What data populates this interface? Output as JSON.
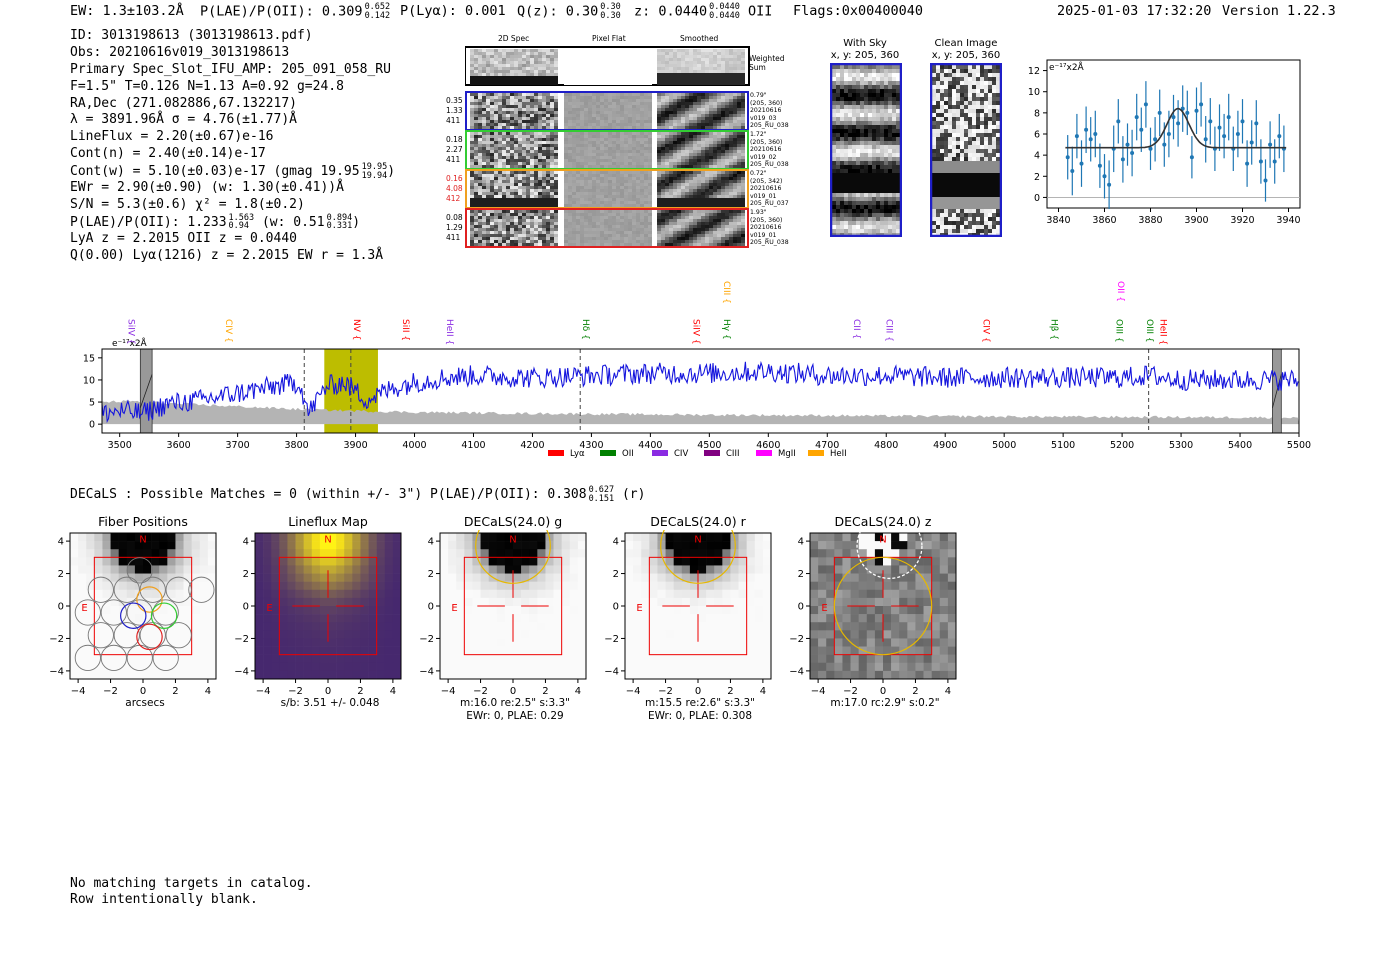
{
  "header": {
    "ew": "EW: 1.3±103.2Å",
    "plae_label": "P(LAE)/P(OII): 0.309",
    "plae_hi": "0.652",
    "plae_lo": "0.142",
    "plya": "P(Lyα): 0.001",
    "qz_label": "Q(z): 0.30",
    "qz_hi": "0.30",
    "qz_lo": "0.30",
    "z_label": "z: 0.0440",
    "z_hi": "0.0440",
    "z_lo": "0.0440",
    "z_line": "OII",
    "flags": "Flags:0x00400040",
    "timestamp": "2025-01-03 17:32:20",
    "version": "Version 1.22.3"
  },
  "info": {
    "id": "ID: 3013198613 (3013198613.pdf)",
    "obs": "Obs: 20210616v019_3013198613",
    "primary": "Primary Spec_Slot_IFU_AMP: 205_091_058_RU",
    "fiber": "F=1.5\"  T=0.126  N=1.13  A=0.92  g=24.8",
    "radec": "RA,Dec (271.082886,67.132217)",
    "lambda": "λ = 3891.96Å  σ = 4.76(±1.77)Å",
    "lineflux": "LineFlux = 2.20(±0.67)e-16",
    "contn": "Cont(n) = 2.40(±0.14)e-17",
    "contw": "Cont(w) = 5.10(±0.03)e-17 (gmag 19.95",
    "gmag_hi": "19.95",
    "gmag_lo": "19.94",
    "contw_close": ")",
    "ewr": "EWr = 2.90(±0.90) (w: 1.30(±0.41))Å",
    "sn": "S/N = 5.3(±0.6)  χ² = 1.8(±0.2)",
    "plae": "P(LAE)/P(OII): 1.233",
    "plae_hi": "1.563",
    "plae_lo": "0.94",
    "plae_w": "(w: 0.51",
    "plae_w_hi": "0.894",
    "plae_w_lo": "0.331",
    "plae_close": ")",
    "lya": "LyA z = 2.2015  OII z = 0.0440",
    "q": "Q(0.00) Lyα(1216) z = 2.2015  EW r = 1.3Å"
  },
  "cutouts": {
    "col_2d": "2D Spec",
    "col_flat": "Pixel Flat",
    "col_smooth": "Smoothed",
    "weighted": "Weighted Sum",
    "rows": [
      {
        "left": [
          "0.35",
          "1.33",
          "411"
        ],
        "left_color": "#000000",
        "border": "#1f1fc8",
        "right": [
          "0.79\"",
          "(205, 360)",
          "20210616",
          "v019_03",
          "205_RU_038"
        ]
      },
      {
        "left": [
          "0.18",
          "2.27",
          "411"
        ],
        "left_color": "#000000",
        "border": "#33cc33",
        "right": [
          "1.72\"",
          "(205, 360)",
          "20210616",
          "v019_02",
          "205_RU_038"
        ]
      },
      {
        "left": [
          "0.16",
          "4.08",
          "412"
        ],
        "left_color": "#e02020",
        "border": "#f0a020",
        "right": [
          "0.72\"",
          "(205, 342)",
          "20210616",
          "v019_01",
          "205_RU_037"
        ]
      },
      {
        "left": [
          "0.08",
          "1.29",
          "411"
        ],
        "left_color": "#000000",
        "border": "#e02020",
        "right": [
          "1.93\"",
          "(205, 360)",
          "20210616",
          "v019_01",
          "205_RU_038"
        ]
      }
    ]
  },
  "sky": {
    "with_sky_title": "With Sky",
    "with_sky_coords": "x, y: 205, 360",
    "clean_title": "Clean Image",
    "clean_coords": "x, y: 205, 360"
  },
  "zoom_chart": {
    "unit_label": "e⁻¹⁷x2Å"
  },
  "spectrum_chart": {
    "unit_label": "e⁻¹⁷x2Å",
    "legend": [
      {
        "label": "Lyα",
        "color": "#ff0000"
      },
      {
        "label": "OII",
        "color": "#008000"
      },
      {
        "label": "CIV",
        "color": "#8a2be2"
      },
      {
        "label": "CIII",
        "color": "#800080"
      },
      {
        "label": "MgII",
        "color": "#ff00ff"
      },
      {
        "label": "HeII",
        "color": "#ffa500"
      }
    ],
    "lines": [
      {
        "name": "SiIV",
        "x": 3510,
        "color": "#8a2be2",
        "row": 0
      },
      {
        "name": "CIV",
        "x": 3675,
        "color": "#ffa500",
        "row": 0
      },
      {
        "name": "NV",
        "x": 3892,
        "color": "#ff0000",
        "row": 0
      },
      {
        "name": "SiII",
        "x": 3975,
        "color": "#ff0000",
        "row": 0
      },
      {
        "name": "HeII",
        "x": 4050,
        "color": "#8a2be2",
        "row": 0
      },
      {
        "name": "Hδ",
        "x": 4281,
        "color": "#008000",
        "row": 0
      },
      {
        "name": "SiIV",
        "x": 4468,
        "color": "#ff0000",
        "row": 0
      },
      {
        "name": "Hγ",
        "x": 4520,
        "color": "#008000",
        "row": 0
      },
      {
        "name": "CIII",
        "x": 4520,
        "color": "#ffa500",
        "row": 1
      },
      {
        "name": "CII",
        "x": 4740,
        "color": "#8a2be2",
        "row": 0
      },
      {
        "name": "CIII",
        "x": 4795,
        "color": "#8a2be2",
        "row": 0
      },
      {
        "name": "CIV",
        "x": 4960,
        "color": "#ff0000",
        "row": 0
      },
      {
        "name": "Hβ",
        "x": 5075,
        "color": "#008000",
        "row": 0
      },
      {
        "name": "OIII",
        "x": 5185,
        "color": "#008000",
        "row": 0
      },
      {
        "name": "OII",
        "x": 5188,
        "color": "#ff00ff",
        "row": 1
      },
      {
        "name": "OIII",
        "x": 5237,
        "color": "#008000",
        "row": 0
      },
      {
        "name": "HeII",
        "x": 5260,
        "color": "#ff0000",
        "row": 0
      }
    ]
  },
  "decals": {
    "summary": "DECaLS : Possible Matches = 0 (within +/- 3\")  P(LAE)/P(OII): 0.308",
    "summary_hi": "0.627",
    "summary_lo": "0.151",
    "summary_band": "(r)",
    "panels": [
      {
        "title": "Fiber Positions",
        "caption": [
          "arcsecs"
        ]
      },
      {
        "title": "Lineflux Map",
        "caption": [
          "s/b: 3.51 +/- 0.048"
        ]
      },
      {
        "title": "DECaLS(24.0) g",
        "caption": [
          "m:16.0  re:2.5\"  s:3.3\"",
          "EWr: 0, PLAE: 0.29"
        ]
      },
      {
        "title": "DECaLS(24.0) r",
        "caption": [
          "m:15.5  re:2.6\"  s:3.3\"",
          "EWr: 0, PLAE: 0.308"
        ]
      },
      {
        "title": "DECaLS(24.0) z",
        "caption": [
          "m:17.0 rc:2.9\"  s:0.2\""
        ]
      }
    ],
    "north_label": "N",
    "east_label": "E"
  },
  "footer": {
    "line1": "No matching targets in catalog.",
    "line2": "Row intentionally blank."
  },
  "chart_data": [
    {
      "type": "line",
      "title": "",
      "ylabel": "e⁻¹⁷x2Å",
      "xlim": [
        3835,
        3945
      ],
      "ylim": [
        -1,
        13
      ],
      "x_ticks": [
        3840,
        3860,
        3880,
        3900,
        3920,
        3940
      ],
      "y_ticks": [
        0,
        2,
        4,
        6,
        8,
        10,
        12
      ],
      "series": [
        {
          "kind": "errorbar",
          "x": [
            3844,
            3846,
            3848,
            3850,
            3852,
            3854,
            3856,
            3858,
            3860,
            3862,
            3864,
            3866,
            3868,
            3870,
            3872,
            3874,
            3876,
            3878,
            3880,
            3882,
            3884,
            3886,
            3888,
            3890,
            3892,
            3894,
            3896,
            3898,
            3900,
            3902,
            3904,
            3906,
            3908,
            3910,
            3912,
            3914,
            3916,
            3918,
            3920,
            3922,
            3924,
            3926,
            3928,
            3930,
            3932,
            3934,
            3936,
            3938
          ],
          "y": [
            3.8,
            2.5,
            5.8,
            3.2,
            6.4,
            5.5,
            6.0,
            3.0,
            2.0,
            1.2,
            4.6,
            7.2,
            3.6,
            5.0,
            4.2,
            7.6,
            6.4,
            8.8,
            4.6,
            5.5,
            8.0,
            5.0,
            6.0,
            7.6,
            7.0,
            8.4,
            8.0,
            3.8,
            8.2,
            8.8,
            5.5,
            7.2,
            4.6,
            6.6,
            5.8,
            7.6,
            4.6,
            6.0,
            7.2,
            3.2,
            5.2,
            7.0,
            3.4,
            1.6,
            5.0,
            3.4,
            5.8,
            4.6
          ],
          "err": [
            2.1,
            2.3,
            2.1,
            2.2,
            2.2,
            2.1,
            2.2,
            2.1,
            2.1,
            2.3,
            2.2,
            2.1,
            2.2,
            2.0,
            2.2,
            2.2,
            2.1,
            2.2,
            2.0,
            2.1,
            2.2,
            2.1,
            2.2,
            2.1,
            2.2,
            2.2,
            2.1,
            2.0,
            2.2,
            2.1,
            2.2,
            2.2,
            2.1,
            2.2,
            2.1,
            2.2,
            2.1,
            2.2,
            2.1,
            2.2,
            2.1,
            2.2,
            2.1,
            2.0,
            2.2,
            2.1,
            2.1,
            2.2
          ]
        },
        {
          "kind": "gaussian-fit",
          "continuum": 4.7,
          "center": 3891.96,
          "sigma": 4.76,
          "amplitude": 3.7,
          "x_range": [
            3843,
            3939
          ]
        }
      ]
    },
    {
      "type": "line",
      "title": "",
      "ylabel": "e⁻¹⁷x2Å",
      "xlim": [
        3470,
        5500
      ],
      "ylim": [
        -2,
        17
      ],
      "x_ticks": [
        3500,
        3600,
        3700,
        3800,
        3900,
        4000,
        4100,
        4200,
        4300,
        4400,
        4500,
        4600,
        4700,
        4800,
        4900,
        5000,
        5100,
        5200,
        5300,
        5400,
        5500
      ],
      "y_ticks": [
        0,
        5,
        10,
        15
      ],
      "highlight_range": [
        3847,
        3938
      ],
      "marker_lines": [
        3813,
        3892,
        4281,
        5245
      ],
      "masked_ranges": [
        [
          3535,
          3555
        ],
        [
          5455,
          5470
        ]
      ],
      "series": [
        {
          "name": "",
          "color": "#1515dd",
          "knots_x": [
            3470,
            3500,
            3540,
            3580,
            3640,
            3700,
            3760,
            3805,
            3820,
            3850,
            3880,
            3920,
            3960,
            4000,
            4050,
            4100,
            4200,
            4300,
            4400,
            4500,
            4600,
            4700,
            4800,
            4900,
            5000,
            5100,
            5200,
            5245,
            5300,
            5400,
            5500
          ],
          "knots_y": [
            2.5,
            3.0,
            2.5,
            4.5,
            5.5,
            7.0,
            8.5,
            9.5,
            2.5,
            8.5,
            9.5,
            5.5,
            8.0,
            9.5,
            10.5,
            11.0,
            10.5,
            11.0,
            11.5,
            11.5,
            12.0,
            11.0,
            11.0,
            10.5,
            10.5,
            10.5,
            10.5,
            11.0,
            10.0,
            10.0,
            10.0
          ],
          "noise": 1.5
        },
        {
          "name": "",
          "color": "#b4b4b4",
          "kind": "error-band",
          "knots_x": [
            3470,
            3520,
            3600,
            3700,
            3800,
            3900,
            4000,
            4200,
            4500,
            5000,
            5500
          ],
          "knots_y": [
            5.0,
            5.2,
            4.6,
            4.0,
            3.4,
            3.0,
            2.7,
            2.4,
            2.1,
            1.7,
            1.5
          ]
        }
      ]
    },
    {
      "type": "heatmap",
      "title": "Fiber Positions",
      "xlabel": "arcsecs",
      "xlim": [
        -4.5,
        4.5
      ],
      "ylim": [
        -4.5,
        4.5
      ],
      "x_ticks": [
        -4,
        -2,
        0,
        2,
        4
      ],
      "y_ticks": [
        -4,
        -2,
        0,
        2,
        4
      ]
    },
    {
      "type": "heatmap",
      "title": "Lineflux Map",
      "xlim": [
        -4.5,
        4.5
      ],
      "ylim": [
        -4.5,
        4.5
      ],
      "x_ticks": [
        -4,
        -2,
        0,
        2,
        4
      ],
      "y_ticks": [
        -4,
        -2,
        0,
        2,
        4
      ]
    },
    {
      "type": "heatmap",
      "title": "DECaLS(24.0) g",
      "xlim": [
        -4.5,
        4.5
      ],
      "ylim": [
        -4.5,
        4.5
      ],
      "x_ticks": [
        -4,
        -2,
        0,
        2,
        4
      ],
      "y_ticks": [
        -4,
        -2,
        0,
        2,
        4
      ]
    },
    {
      "type": "heatmap",
      "title": "DECaLS(24.0) r",
      "xlim": [
        -4.5,
        4.5
      ],
      "ylim": [
        -4.5,
        4.5
      ],
      "x_ticks": [
        -4,
        -2,
        0,
        2,
        4
      ],
      "y_ticks": [
        -4,
        -2,
        0,
        2,
        4
      ]
    },
    {
      "type": "heatmap",
      "title": "DECaLS(24.0) z",
      "xlim": [
        -4.5,
        4.5
      ],
      "ylim": [
        -4.5,
        4.5
      ],
      "x_ticks": [
        -4,
        -2,
        0,
        2,
        4
      ],
      "y_ticks": [
        -4,
        -2,
        0,
        2,
        4
      ]
    }
  ]
}
